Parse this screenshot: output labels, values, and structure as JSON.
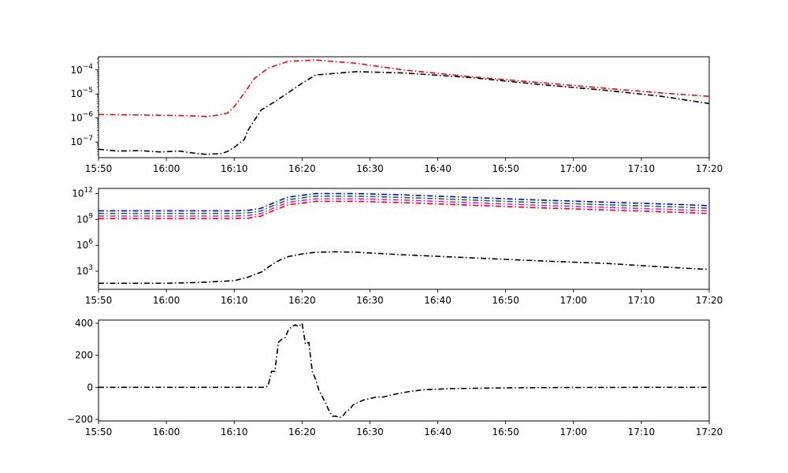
{
  "colors": {
    "red": "#ff0000",
    "black": "#000000",
    "blue": "#0000ff",
    "green": "#008000",
    "magenta": "#ff00ff"
  },
  "chart_data": [
    {
      "type": "line",
      "title": "",
      "xlabel": "",
      "ylabel": "",
      "yscale": "log",
      "x_range_minutes": [
        0,
        90
      ],
      "x_tick_values": [
        0,
        10,
        20,
        30,
        40,
        50,
        60,
        70,
        80,
        90
      ],
      "x_tick_labels": [
        "15:50",
        "16:00",
        "16:10",
        "16:20",
        "16:30",
        "16:40",
        "16:50",
        "17:00",
        "17:10",
        "17:20"
      ],
      "ylim_log10": [
        -7.65,
        -3.45
      ],
      "y_tick_log10": [
        -7,
        -6,
        -5,
        -4
      ],
      "y_tick_labels": [
        {
          "base": "10",
          "exp": "−7"
        },
        {
          "base": "10",
          "exp": "−6"
        },
        {
          "base": "10",
          "exp": "−5"
        },
        {
          "base": "10",
          "exp": "−4"
        }
      ],
      "grid": false,
      "series": [
        {
          "color": "#ff0000",
          "x": [
            0,
            5,
            10,
            13,
            16,
            17,
            19,
            20,
            21.5,
            23,
            25,
            28,
            32,
            38,
            45,
            55,
            65,
            75,
            83,
            90
          ],
          "y": [
            1.4e-06,
            1.35e-06,
            1.3e-06,
            1.25e-06,
            1.15e-06,
            1.25e-06,
            1.6e-06,
            3e-06,
            1.1e-05,
            4.5e-05,
            0.00012,
            0.00023,
            0.00026,
            0.00019,
            0.0001,
            5.2e-05,
            3e-05,
            1.7e-05,
            1.1e-05,
            8e-06
          ]
        },
        {
          "color": "#000000",
          "x": [
            0,
            3,
            6,
            9,
            12,
            13,
            15,
            16,
            18,
            19,
            20,
            21.5,
            22,
            24,
            26,
            30,
            32,
            38,
            45,
            55,
            65,
            75,
            83,
            90
          ],
          "y": [
            5e-08,
            4.2e-08,
            4.4e-08,
            3.9e-08,
            4.2e-08,
            3.8e-08,
            3.2e-08,
            3.1e-08,
            3.3e-08,
            4e-08,
            6e-08,
            1.3e-07,
            3e-07,
            2.2e-06,
            4.8e-06,
            2.8e-05,
            6.2e-05,
            8.5e-05,
            7.5e-05,
            4.8e-05,
            2.5e-05,
            1.4e-05,
            8e-06,
            4e-06
          ]
        }
      ]
    },
    {
      "type": "line",
      "title": "",
      "xlabel": "",
      "ylabel": "",
      "yscale": "log",
      "x_range_minutes": [
        0,
        90
      ],
      "x_tick_values": [
        0,
        10,
        20,
        30,
        40,
        50,
        60,
        70,
        80,
        90
      ],
      "x_tick_labels": [
        "15:50",
        "16:00",
        "16:10",
        "16:20",
        "16:30",
        "16:40",
        "16:50",
        "17:00",
        "17:10",
        "17:20"
      ],
      "ylim_log10": [
        0.9,
        12.6
      ],
      "y_tick_log10": [
        3,
        6,
        9,
        12
      ],
      "y_tick_labels": [
        {
          "base": "10",
          "exp": "3"
        },
        {
          "base": "10",
          "exp": "6"
        },
        {
          "base": "10",
          "exp": "9"
        },
        {
          "base": "10",
          "exp": "12"
        }
      ],
      "grid": false,
      "series": [
        {
          "color": "#0000ff",
          "x": [
            0,
            10,
            20,
            22,
            24,
            26,
            28,
            32,
            38,
            45,
            55,
            65,
            75,
            83,
            90
          ],
          "y_log10": [
            10.0,
            10.0,
            10.0,
            10.05,
            10.3,
            11.0,
            11.6,
            12.0,
            12.0,
            11.85,
            11.55,
            11.25,
            11.0,
            10.8,
            10.6
          ]
        },
        {
          "color": "#008000",
          "x": [
            0,
            10,
            20,
            22,
            24,
            26,
            28,
            32,
            38,
            45,
            55,
            65,
            75,
            83,
            90
          ],
          "y_log10": [
            9.7,
            9.7,
            9.7,
            9.75,
            10.0,
            10.7,
            11.3,
            11.7,
            11.7,
            11.55,
            11.25,
            10.95,
            10.7,
            10.5,
            10.3
          ]
        },
        {
          "color": "#ff00ff",
          "x": [
            0,
            10,
            20,
            22,
            24,
            26,
            28,
            32,
            38,
            45,
            55,
            65,
            75,
            83,
            90
          ],
          "y_log10": [
            9.4,
            9.4,
            9.4,
            9.45,
            9.7,
            10.4,
            11.0,
            11.4,
            11.4,
            11.25,
            10.95,
            10.65,
            10.4,
            10.2,
            10.0
          ]
        },
        {
          "color": "#ff0000",
          "x": [
            0,
            10,
            20,
            22,
            24,
            26,
            28,
            32,
            38,
            45,
            55,
            65,
            75,
            83,
            90
          ],
          "y_log10": [
            9.1,
            9.1,
            9.1,
            9.15,
            9.4,
            10.1,
            10.7,
            11.1,
            11.1,
            10.95,
            10.65,
            10.35,
            10.1,
            9.9,
            9.7
          ]
        },
        {
          "color": "#000000",
          "x": [
            0,
            5,
            10,
            15,
            20,
            22,
            24,
            26,
            27,
            28,
            30,
            32,
            35,
            38,
            45,
            55,
            65,
            75,
            83,
            90
          ],
          "y_log10": [
            1.6,
            1.6,
            1.6,
            1.7,
            1.9,
            2.3,
            2.9,
            4.0,
            4.4,
            4.7,
            5.0,
            5.2,
            5.25,
            5.2,
            4.9,
            4.55,
            4.2,
            3.9,
            3.5,
            3.2
          ]
        }
      ]
    },
    {
      "type": "line",
      "title": "",
      "xlabel": "",
      "ylabel": "",
      "yscale": "linear",
      "x_range_minutes": [
        0,
        90
      ],
      "x_tick_values": [
        0,
        10,
        20,
        30,
        40,
        50,
        60,
        70,
        80,
        90
      ],
      "x_tick_labels": [
        "15:50",
        "16:00",
        "16:10",
        "16:20",
        "16:30",
        "16:40",
        "16:50",
        "17:00",
        "17:10",
        "17:20"
      ],
      "ylim": [
        -210,
        420
      ],
      "y_tick_values": [
        -200,
        0,
        200,
        400
      ],
      "y_tick_labels": [
        "−200",
        "0",
        "200",
        "400"
      ],
      "grid": false,
      "series": [
        {
          "color": "#000000",
          "x": [
            0,
            24.5,
            25,
            25.5,
            26,
            26.5,
            27,
            27.5,
            28,
            28.5,
            29,
            29.5,
            30,
            30.5,
            31,
            31.5,
            32,
            32.5,
            33,
            33.5,
            34,
            34.5,
            35,
            35.5,
            36,
            36.5,
            37,
            37.5,
            38,
            38.5,
            39,
            40,
            41,
            42,
            43,
            44,
            46,
            48,
            52,
            60,
            70,
            80,
            90
          ],
          "y": [
            0,
            0,
            10,
            100,
            100,
            280,
            300,
            310,
            360,
            380,
            390,
            380,
            400,
            270,
            280,
            100,
            50,
            -20,
            -60,
            -100,
            -150,
            -180,
            -180,
            -190,
            -180,
            -150,
            -140,
            -110,
            -100,
            -90,
            -80,
            -70,
            -60,
            -60,
            -50,
            -40,
            -25,
            -15,
            -8,
            -3,
            -1,
            0,
            0
          ]
        }
      ]
    }
  ]
}
